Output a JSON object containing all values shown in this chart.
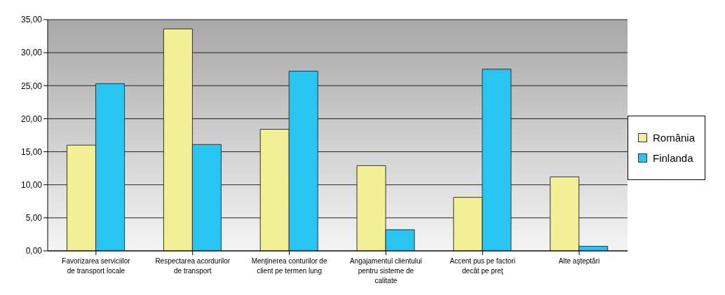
{
  "chart_data": {
    "type": "bar",
    "categories": [
      "Favorizarea serviciilor de transport locale",
      "Respectarea acordurilor de transport",
      "Menţinerea conturilor de client pe termen lung",
      "Angajamentul clientului pentru sisteme de calitate",
      "Accent pus pe factori decât pe preţ",
      "Alte aşteptări"
    ],
    "series": [
      {
        "name": "România",
        "color": "#f2f095",
        "values": [
          16.0,
          33.6,
          18.4,
          12.9,
          8.1,
          11.2
        ]
      },
      {
        "name": "Finlanda",
        "color": "#29c5f2",
        "values": [
          25.3,
          16.1,
          27.2,
          3.2,
          27.5,
          0.7
        ]
      }
    ],
    "ylim": [
      0,
      35
    ],
    "yticks": [
      {
        "value": 0,
        "label": "0,00"
      },
      {
        "value": 5,
        "label": "5,00"
      },
      {
        "value": 10,
        "label": "10,00"
      },
      {
        "value": 15,
        "label": "15,00"
      },
      {
        "value": 20,
        "label": "20,00"
      },
      {
        "value": 25,
        "label": "25,00"
      },
      {
        "value": 30,
        "label": "30,00"
      },
      {
        "value": 35,
        "label": "35,00"
      }
    ],
    "grid": "y",
    "legend": "right"
  }
}
